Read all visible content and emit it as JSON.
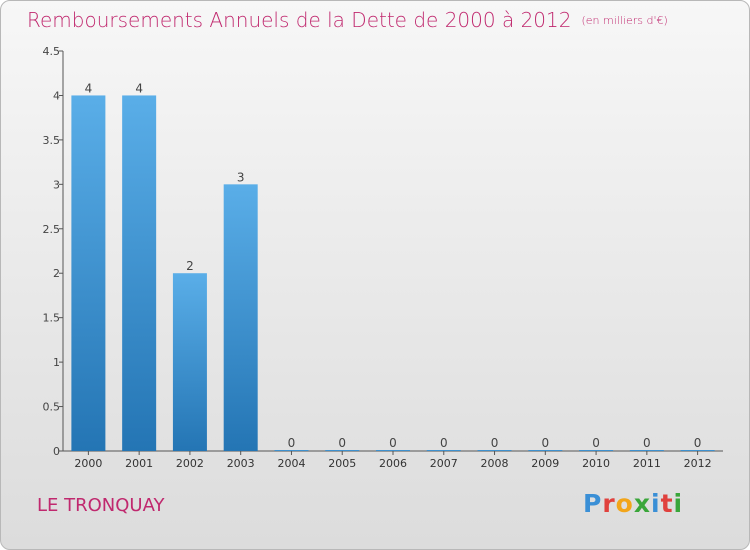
{
  "header": {
    "title": "Remboursements Annuels de la Dette de 2000 à 2012",
    "unit": "(en milliers d'€)"
  },
  "commune": "LE TRONQUAY",
  "logo": {
    "text": "Proxiti",
    "colors": [
      "#3a8fd6",
      "#e0413d",
      "#f2a51a",
      "#3aa63a",
      "#3a8fd6",
      "#e0413d",
      "#3aa63a"
    ]
  },
  "chart_data": {
    "type": "bar",
    "categories": [
      "2000",
      "2001",
      "2002",
      "2003",
      "2004",
      "2005",
      "2006",
      "2007",
      "2008",
      "2009",
      "2010",
      "2011",
      "2012"
    ],
    "values": [
      4,
      4,
      2,
      3,
      0,
      0,
      0,
      0,
      0,
      0,
      0,
      0,
      0
    ],
    "data_labels": [
      "4",
      "4",
      "2",
      "3",
      "0",
      "0",
      "0",
      "0",
      "0",
      "0",
      "0",
      "0",
      "0"
    ],
    "yticks": [
      0,
      0.5,
      1,
      1.5,
      2,
      2.5,
      3,
      3.5,
      4,
      4.5
    ],
    "ytick_labels": [
      "0",
      "0.5",
      "1",
      "1.5",
      "2",
      "2.5",
      "3",
      "3.5",
      "4",
      "4.5"
    ],
    "ylim": [
      0,
      4.5
    ],
    "title": "Remboursements Annuels de la Dette de 2000 à 2012",
    "xlabel": "",
    "ylabel": "",
    "grid": false,
    "bar_color_top": "#5aaee8",
    "bar_color_bottom": "#2475b4"
  }
}
